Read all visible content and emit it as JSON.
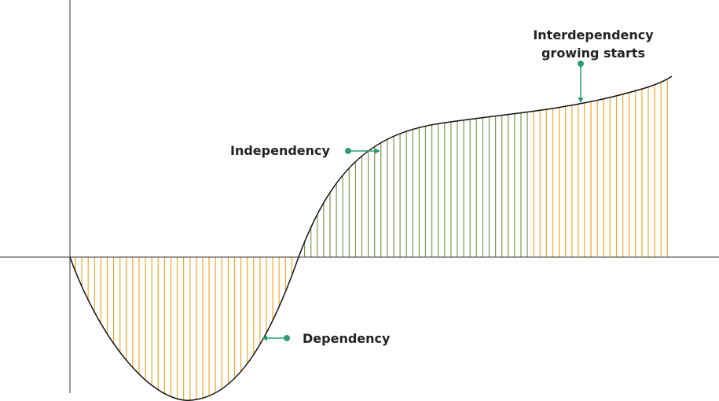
{
  "diagram": {
    "labels": {
      "independency": "Independency",
      "dependency": "Dependency",
      "interdependency_line1": "Interdependency",
      "interdependency_line2": "growing starts"
    },
    "colors": {
      "curve": "#111111",
      "axis": "#333333",
      "dependency_fill": "#F5A623",
      "independency_fill": "#7A9A4E",
      "interdependency_fill": "#F5A623",
      "pointer": "#2E9A78",
      "label_text": "#222222"
    }
  }
}
